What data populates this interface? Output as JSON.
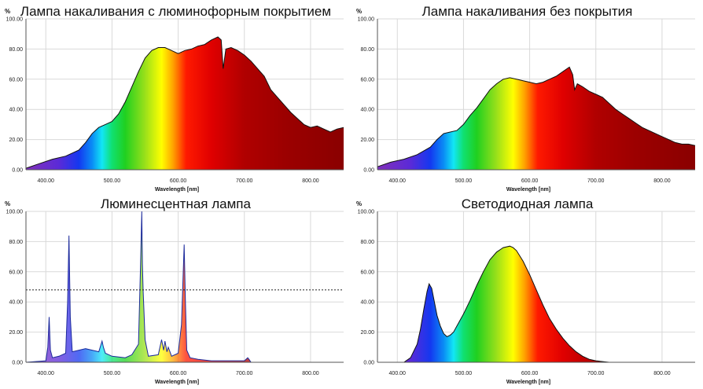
{
  "chart_data": [
    {
      "type": "area",
      "title": "Лампа накаливания с люминофорным покрытием",
      "xlabel": "Wavelength [nm]",
      "ylabel": "%",
      "xlim": [
        370,
        850
      ],
      "ylim": [
        0,
        100
      ],
      "xticks": [
        "400.00",
        "500.00",
        "600.00",
        "700.00",
        "800.00"
      ],
      "yticks": [
        "0.00",
        "20.00",
        "40.00",
        "60.00",
        "80.00",
        "100.00"
      ],
      "grid": true,
      "fill": "spectrum",
      "series": [
        {
          "x": [
            370,
            390,
            410,
            430,
            450,
            460,
            470,
            480,
            490,
            500,
            510,
            520,
            530,
            540,
            550,
            560,
            570,
            580,
            590,
            600,
            610,
            620,
            630,
            640,
            650,
            660,
            665,
            668,
            672,
            680,
            690,
            700,
            710,
            720,
            730,
            740,
            750,
            760,
            770,
            780,
            790,
            800,
            810,
            820,
            830,
            840,
            850
          ],
          "y": [
            1,
            4,
            7,
            9,
            13,
            18,
            24,
            28,
            30,
            32,
            37,
            45,
            55,
            65,
            74,
            79,
            81,
            81,
            79,
            77,
            79,
            80,
            82,
            83,
            86,
            88,
            86,
            67,
            80,
            81,
            79,
            76,
            72,
            67,
            62,
            53,
            48,
            43,
            38,
            34,
            30,
            28,
            29,
            27,
            25,
            27,
            28
          ]
        }
      ]
    },
    {
      "type": "area",
      "title": "Лампа накаливания без покрытия",
      "xlabel": "Wavelength [nm]",
      "ylabel": "%",
      "xlim": [
        370,
        850
      ],
      "ylim": [
        0,
        100
      ],
      "xticks": [
        "400.00",
        "500.00",
        "600.00",
        "700.00",
        "800.00"
      ],
      "yticks": [
        "0.00",
        "20.00",
        "40.00",
        "60.00",
        "80.00",
        "100.00"
      ],
      "grid": true,
      "fill": "spectrum",
      "series": [
        {
          "x": [
            370,
            390,
            410,
            430,
            450,
            460,
            470,
            480,
            490,
            500,
            510,
            520,
            530,
            540,
            550,
            560,
            570,
            580,
            590,
            600,
            610,
            620,
            630,
            640,
            650,
            660,
            665,
            668,
            672,
            680,
            690,
            700,
            710,
            720,
            730,
            740,
            750,
            760,
            770,
            780,
            790,
            800,
            810,
            820,
            830,
            840,
            850
          ],
          "y": [
            2,
            5,
            7,
            10,
            15,
            20,
            24,
            25,
            26,
            30,
            36,
            41,
            47,
            53,
            57,
            60,
            61,
            60,
            59,
            58,
            57,
            58,
            60,
            62,
            65,
            68,
            63,
            53,
            57,
            55,
            52,
            50,
            48,
            44,
            40,
            37,
            34,
            31,
            28,
            26,
            24,
            22,
            20,
            18,
            17,
            17,
            16
          ]
        }
      ]
    },
    {
      "type": "line",
      "title": "Люминесцентная лампа",
      "xlabel": "Wavelength [nm]",
      "ylabel": "%",
      "xlim": [
        370,
        850
      ],
      "ylim": [
        0,
        100
      ],
      "xticks": [
        "400.00",
        "500.00",
        "600.00",
        "700.00",
        "800.00"
      ],
      "yticks": [
        "0.00",
        "20.00",
        "40.00",
        "60.00",
        "80.00",
        "100.00"
      ],
      "grid": true,
      "reference_line": 48,
      "fill": "spectrum-partial",
      "series": [
        {
          "x": [
            370,
            400,
            403,
            405,
            407,
            410,
            420,
            430,
            433,
            435,
            437,
            440,
            460,
            470,
            480,
            485,
            487,
            490,
            500,
            520,
            530,
            540,
            543,
            545,
            546,
            547,
            550,
            555,
            570,
            575,
            578,
            580,
            583,
            585,
            590,
            600,
            605,
            609,
            611,
            613,
            618,
            630,
            650,
            660,
            700,
            705,
            707,
            710,
            720,
            850
          ],
          "y": [
            0,
            1,
            10,
            30,
            8,
            3,
            4,
            6,
            40,
            84,
            30,
            7,
            9,
            8,
            7,
            14,
            10,
            6,
            4,
            3,
            5,
            12,
            62,
            100,
            65,
            48,
            15,
            4,
            5,
            15,
            8,
            14,
            7,
            10,
            4,
            6,
            25,
            78,
            40,
            8,
            3,
            2,
            1,
            1,
            1,
            3,
            2,
            0,
            0,
            0
          ]
        }
      ]
    },
    {
      "type": "area",
      "title": "Светодиодная лампа",
      "xlabel": "Wavelength [nm]",
      "ylabel": "%",
      "xlim": [
        370,
        850
      ],
      "ylim": [
        0,
        100
      ],
      "xticks": [
        "400.00",
        "500.00",
        "600.00",
        "700.00",
        "800.00"
      ],
      "yticks": [
        "0.00",
        "20.00",
        "40.00",
        "60.00",
        "80.00",
        "100.00"
      ],
      "grid": true,
      "fill": "spectrum",
      "series": [
        {
          "x": [
            370,
            410,
            420,
            430,
            435,
            440,
            445,
            448,
            452,
            456,
            460,
            465,
            470,
            475,
            480,
            485,
            490,
            500,
            510,
            520,
            530,
            540,
            550,
            560,
            570,
            575,
            580,
            590,
            600,
            610,
            620,
            630,
            640,
            650,
            660,
            670,
            680,
            690,
            700,
            720,
            740,
            760,
            850
          ],
          "y": [
            0,
            0,
            3,
            12,
            22,
            35,
            47,
            52,
            49,
            40,
            31,
            24,
            19,
            17,
            18,
            20,
            24,
            32,
            41,
            51,
            60,
            68,
            73,
            76,
            77,
            76,
            74,
            67,
            58,
            48,
            38,
            29,
            22,
            16,
            11,
            7,
            4,
            2,
            1,
            0,
            0,
            0,
            0
          ]
        }
      ]
    }
  ]
}
